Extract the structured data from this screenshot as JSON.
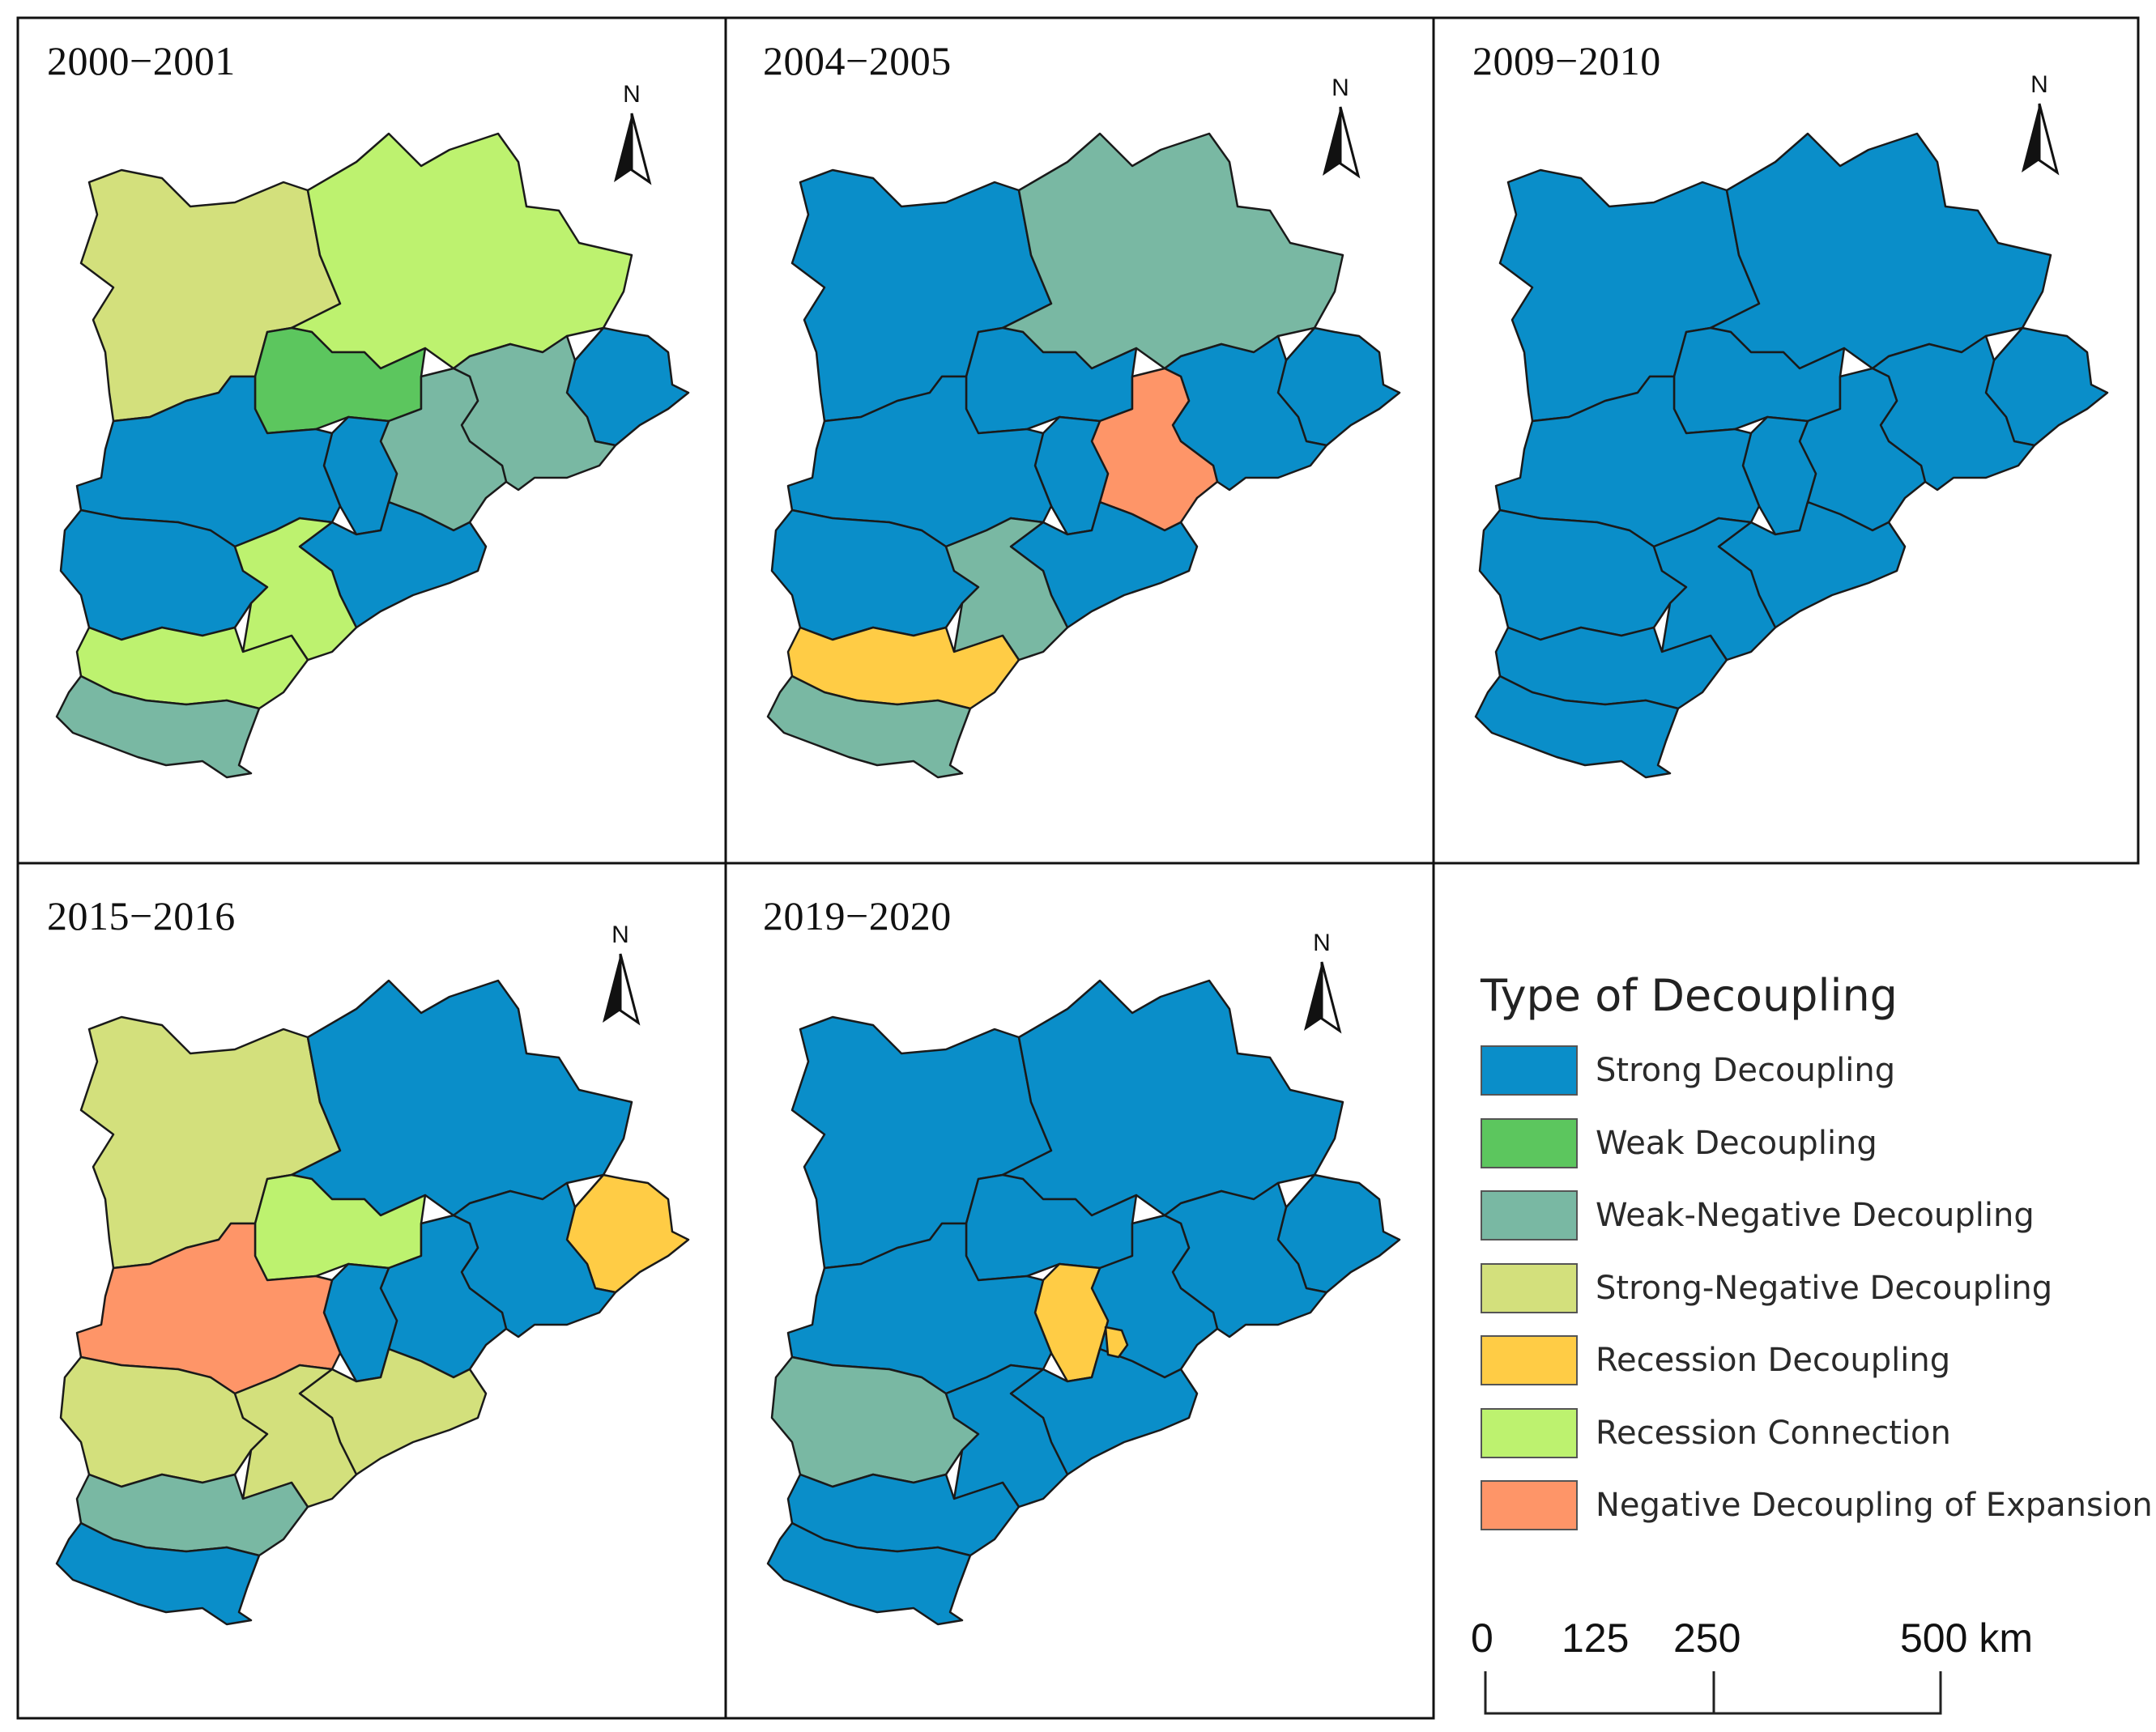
{
  "panels": [
    {
      "title": "2000−2001",
      "north": "N",
      "regions": {
        "zhangjiakou": "Strong-Negative Decoupling",
        "chengde": "Recession Connection",
        "beijing": "Weak Decoupling",
        "qinhuangdao": "Strong Decoupling",
        "tangshan": "Weak-Negative Decoupling",
        "tianjin": "Weak-Negative Decoupling",
        "langfang": "Strong Decoupling",
        "baoding": "Strong Decoupling",
        "cangzhou": "Strong Decoupling",
        "shijiazhuang": "Strong Decoupling",
        "hengshui": "Recession Connection",
        "xingtai": "Recession Connection",
        "handan": "Weak-Negative Decoupling"
      }
    },
    {
      "title": "2004−2005",
      "north": "N",
      "regions": {
        "zhangjiakou": "Strong Decoupling",
        "chengde": "Weak-Negative Decoupling",
        "beijing": "Strong Decoupling",
        "qinhuangdao": "Strong Decoupling",
        "tangshan": "Strong Decoupling",
        "tianjin": "Negative Decoupling of Expansion",
        "langfang": "Strong Decoupling",
        "baoding": "Strong Decoupling",
        "cangzhou": "Strong Decoupling",
        "shijiazhuang": "Strong Decoupling",
        "hengshui": "Weak-Negative Decoupling",
        "xingtai": "Recession Decoupling",
        "handan": "Weak-Negative Decoupling"
      }
    },
    {
      "title": "2009−2010",
      "north": "N",
      "regions": {
        "zhangjiakou": "Strong Decoupling",
        "chengde": "Strong Decoupling",
        "beijing": "Strong Decoupling",
        "qinhuangdao": "Strong Decoupling",
        "tangshan": "Strong Decoupling",
        "tianjin": "Strong Decoupling",
        "langfang": "Strong Decoupling",
        "baoding": "Strong Decoupling",
        "cangzhou": "Strong Decoupling",
        "shijiazhuang": "Strong Decoupling",
        "hengshui": "Strong Decoupling",
        "xingtai": "Strong Decoupling",
        "handan": "Strong Decoupling"
      }
    },
    {
      "title": "2015−2016",
      "north": "N",
      "regions": {
        "zhangjiakou": "Strong-Negative Decoupling",
        "chengde": "Strong Decoupling",
        "beijing": "Recession Connection",
        "qinhuangdao": "Recession Decoupling",
        "tangshan": "Strong Decoupling",
        "tianjin": "Strong Decoupling",
        "langfang": "Strong Decoupling",
        "baoding": "Negative Decoupling of Expansion",
        "cangzhou": "Strong-Negative Decoupling",
        "shijiazhuang": "Strong-Negative Decoupling",
        "hengshui": "Strong-Negative Decoupling",
        "xingtai": "Weak-Negative Decoupling",
        "handan": "Strong Decoupling"
      }
    },
    {
      "title": "2019−2020",
      "north": "N",
      "regions": {
        "zhangjiakou": "Strong Decoupling",
        "chengde": "Strong Decoupling",
        "beijing": "Strong Decoupling",
        "qinhuangdao": "Strong Decoupling",
        "tangshan": "Strong Decoupling",
        "tianjin": "Strong Decoupling",
        "langfang": "Recession Decoupling",
        "langfang_north": "Recession Decoupling",
        "baoding": "Strong Decoupling",
        "cangzhou": "Strong Decoupling",
        "shijiazhuang": "Weak-Negative Decoupling",
        "hengshui": "Strong Decoupling",
        "xingtai": "Strong Decoupling",
        "handan": "Strong Decoupling"
      }
    }
  ],
  "legend": {
    "title": "Type of Decoupling",
    "items": [
      {
        "label": "Strong Decoupling",
        "color": "#0a8ec9"
      },
      {
        "label": "Weak Decoupling",
        "color": "#5cc65e"
      },
      {
        "label": "Weak-Negative Decoupling",
        "color": "#79b8a3"
      },
      {
        "label": "Strong-Negative Decoupling",
        "color": "#d3e07c"
      },
      {
        "label": "Recession Decoupling",
        "color": "#ffcc45"
      },
      {
        "label": "Recession Connection",
        "color": "#bdf26f"
      },
      {
        "label": "Negative Decoupling of Expansion",
        "color": "#fe9568"
      }
    ]
  },
  "scale_bar": {
    "ticks": [
      "0",
      "125",
      "250",
      "500 km"
    ]
  }
}
